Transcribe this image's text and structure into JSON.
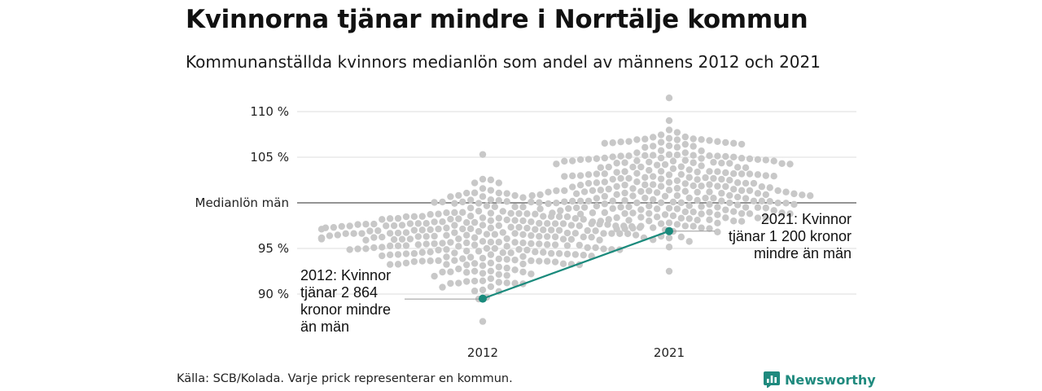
{
  "title": "Kvinnorna tjänar mindre i Norrtälje kommun",
  "subtitle": "Kommunanställda kvinnors medianlön som andel av männens 2012 och 2021",
  "source": "Källa: SCB/Kolada. Varje prick representerar en kommun.",
  "brand": {
    "name": "Newsworthy",
    "icon": "newsworthy-logo-icon",
    "color": "#1f8a7e"
  },
  "chart_data": {
    "type": "scatter",
    "categories": [
      "2012",
      "2021"
    ],
    "ylim": [
      85,
      112
    ],
    "yticks": [
      {
        "value": 110,
        "label": "110 %"
      },
      {
        "value": 105,
        "label": "105 %"
      },
      {
        "value": 100,
        "label": "Medianlön män"
      },
      {
        "value": 95,
        "label": "95 %"
      },
      {
        "value": 90,
        "label": "90 %"
      }
    ],
    "reference_line": 100,
    "dot_color": "#c8c8c8",
    "highlight_color": "#1a8a7c",
    "distributions": [
      {
        "category": "2012",
        "min": 87,
        "max": 105.3,
        "center": 96.5,
        "count": 290,
        "seed": 7
      },
      {
        "category": "2021",
        "min": 92.5,
        "max": 111.5,
        "center": 101.5,
        "count": 290,
        "seed": 13
      }
    ],
    "highlight": {
      "name": "Norrtälje",
      "points": [
        {
          "category": "2012",
          "value": 89.5
        },
        {
          "category": "2021",
          "value": 96.9
        }
      ]
    },
    "annotations": [
      {
        "category": "2012",
        "lines": [
          "2012: Kvinnor",
          "tjänar 2 864",
          "kronor mindre",
          "än män"
        ]
      },
      {
        "category": "2021",
        "lines": [
          "2021: Kvinnor",
          "tjänar 1 200 kronor",
          "mindre än män"
        ]
      }
    ]
  }
}
